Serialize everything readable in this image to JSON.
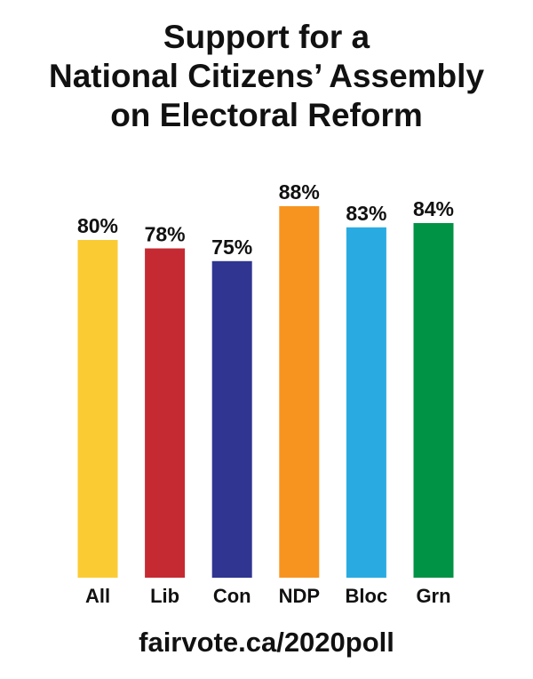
{
  "title_lines": [
    "Support for a",
    "National Citizens’ Assembly",
    "on Electoral Reform"
  ],
  "footer_url": "fairvote.ca/2020poll",
  "chart_data": {
    "type": "bar",
    "title": "Support for a National Citizens’ Assembly on Electoral Reform",
    "categories": [
      "All",
      "Lib",
      "Con",
      "NDP",
      "Bloc",
      "Grn"
    ],
    "values": [
      80,
      78,
      75,
      88,
      83,
      84
    ],
    "data_labels": [
      "80%",
      "78%",
      "75%",
      "88%",
      "83%",
      "84%"
    ],
    "colors": [
      "#FBCB33",
      "#C52A32",
      "#2F3591",
      "#F7941F",
      "#29ABE2",
      "#009245"
    ],
    "xlabel": "",
    "ylabel": "",
    "ylim": [
      0,
      100
    ],
    "grid": false,
    "legend": "none"
  }
}
